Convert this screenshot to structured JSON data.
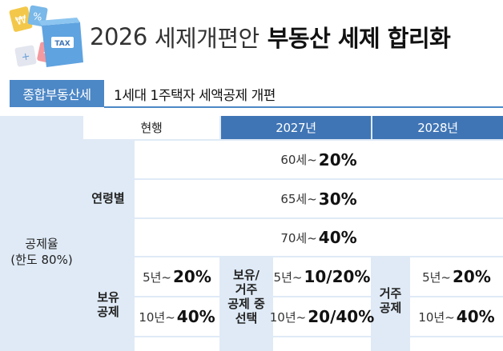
{
  "header": {
    "year": "2026",
    "title_plain": "세제개편안",
    "title_bold": "부동산 세제 합리화",
    "illustration_label": "TAX"
  },
  "category": {
    "badge": "종합부동산세",
    "text": "1세대 1주택자 세액공제 개편"
  },
  "table": {
    "columns": [
      "현행",
      "2027년",
      "2028년"
    ],
    "rate_label_line1": "공제율",
    "rate_label_line2": "(한도 80%)",
    "age_group": {
      "label": "연령별",
      "rows": [
        {
          "prefix": "60세~",
          "value": "20%"
        },
        {
          "prefix": "65세~",
          "value": "30%"
        },
        {
          "prefix": "70세~",
          "value": "40%"
        }
      ]
    },
    "current_holding": {
      "label_line1": "보유",
      "label_line2": "공제",
      "rows": [
        {
          "prefix": "5년~",
          "value": "20%"
        },
        {
          "prefix": "10년~",
          "value": "40%"
        }
      ]
    },
    "y2027": {
      "label_line1": "보유/",
      "label_line2": "거주",
      "label_line3": "공제 중",
      "label_line4": "선택",
      "rows": [
        {
          "prefix": "5년~",
          "value": "10/20%"
        },
        {
          "prefix": "10년~",
          "value": "20/40%"
        }
      ]
    },
    "y2028": {
      "label_line1": "거주",
      "label_line2": "공제",
      "rows": [
        {
          "prefix": "5년~",
          "value": "20%"
        },
        {
          "prefix": "10년~",
          "value": "40%"
        }
      ]
    }
  },
  "colors": {
    "accent_blue": "#4c87c6",
    "header_blue": "#3f75b5",
    "panel_blue": "#dfeaf6"
  }
}
